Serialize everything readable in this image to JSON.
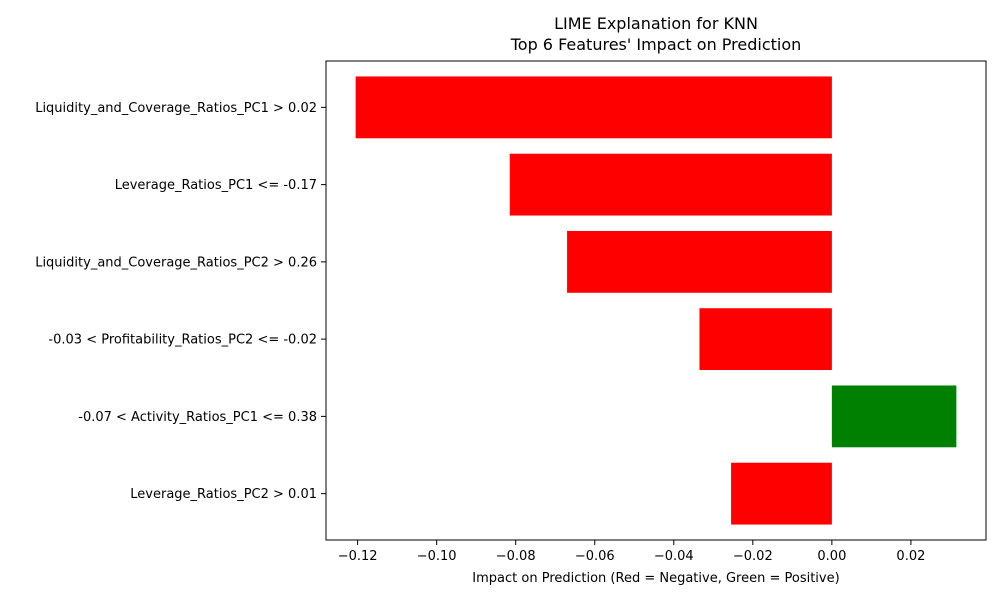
{
  "chart_data": {
    "type": "bar",
    "orientation": "horizontal",
    "title": "LIME Explanation for KNN",
    "subtitle": "Top 6 Features' Impact on Prediction",
    "xlabel": "Impact on Prediction (Red = Negative, Green = Positive)",
    "ylabel": "",
    "xlim": [
      -0.128,
      0.039
    ],
    "xticks": [
      -0.12,
      -0.1,
      -0.08,
      -0.06,
      -0.04,
      -0.02,
      0.0,
      0.02
    ],
    "xtick_labels": [
      "−0.12",
      "−0.10",
      "−0.08",
      "−0.06",
      "−0.04",
      "−0.02",
      "0.00",
      "0.02"
    ],
    "grid": false,
    "colors": {
      "negative": "#ff0000",
      "positive": "#008000"
    },
    "categories": [
      "Liquidity_and_Coverage_Ratios_PC1 > 0.02",
      "Leverage_Ratios_PC1 <= -0.17",
      "Liquidity_and_Coverage_Ratios_PC2 > 0.26",
      "-0.03 < Profitability_Ratios_PC2 <= -0.02",
      "-0.07 < Activity_Ratios_PC1 <= 0.38",
      "Leverage_Ratios_PC2 > 0.01"
    ],
    "values": [
      -0.1205,
      -0.0815,
      -0.067,
      -0.0335,
      0.0315,
      -0.0255
    ]
  }
}
